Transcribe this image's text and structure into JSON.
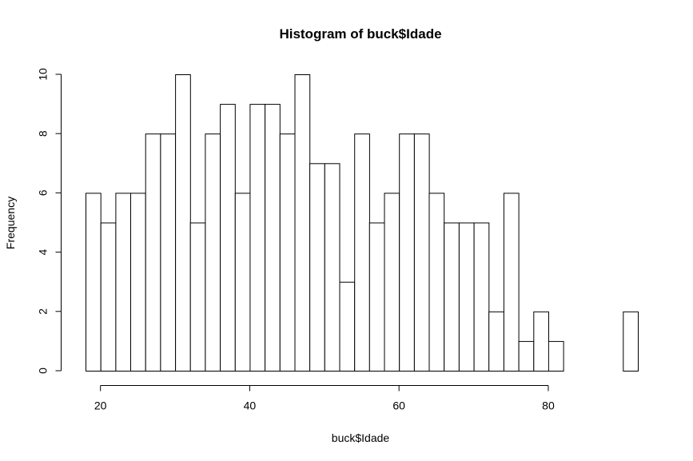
{
  "chart_data": {
    "type": "bar",
    "subtype": "histogram",
    "title": "Histogram of buck$Idade",
    "xlabel": "buck$Idade",
    "ylabel": "Frequency",
    "bin_width": 2,
    "bin_edges": [
      18,
      20,
      22,
      24,
      26,
      28,
      30,
      32,
      34,
      36,
      38,
      40,
      42,
      44,
      46,
      48,
      50,
      52,
      54,
      56,
      58,
      60,
      62,
      64,
      66,
      68,
      70,
      72,
      74,
      76,
      78,
      80,
      82,
      84,
      86,
      88,
      90,
      92
    ],
    "values": [
      6,
      5,
      6,
      6,
      8,
      8,
      10,
      5,
      8,
      9,
      6,
      9,
      9,
      8,
      10,
      7,
      7,
      3,
      8,
      5,
      6,
      8,
      8,
      6,
      5,
      5,
      5,
      2,
      6,
      1,
      2,
      1,
      0,
      0,
      0,
      0,
      2
    ],
    "xlim": [
      18,
      92
    ],
    "ylim": [
      0,
      10
    ],
    "x_ticks": [
      20,
      40,
      60,
      80
    ],
    "x_tick_labels": [
      "20",
      "40",
      "60",
      "80"
    ],
    "y_ticks": [
      0,
      2,
      4,
      6,
      8,
      10
    ],
    "y_tick_labels": [
      "0",
      "2",
      "4",
      "6",
      "8",
      "10"
    ],
    "bar_fill": "#ffffff",
    "bar_stroke": "#000000",
    "grid": false,
    "legend": "none"
  }
}
